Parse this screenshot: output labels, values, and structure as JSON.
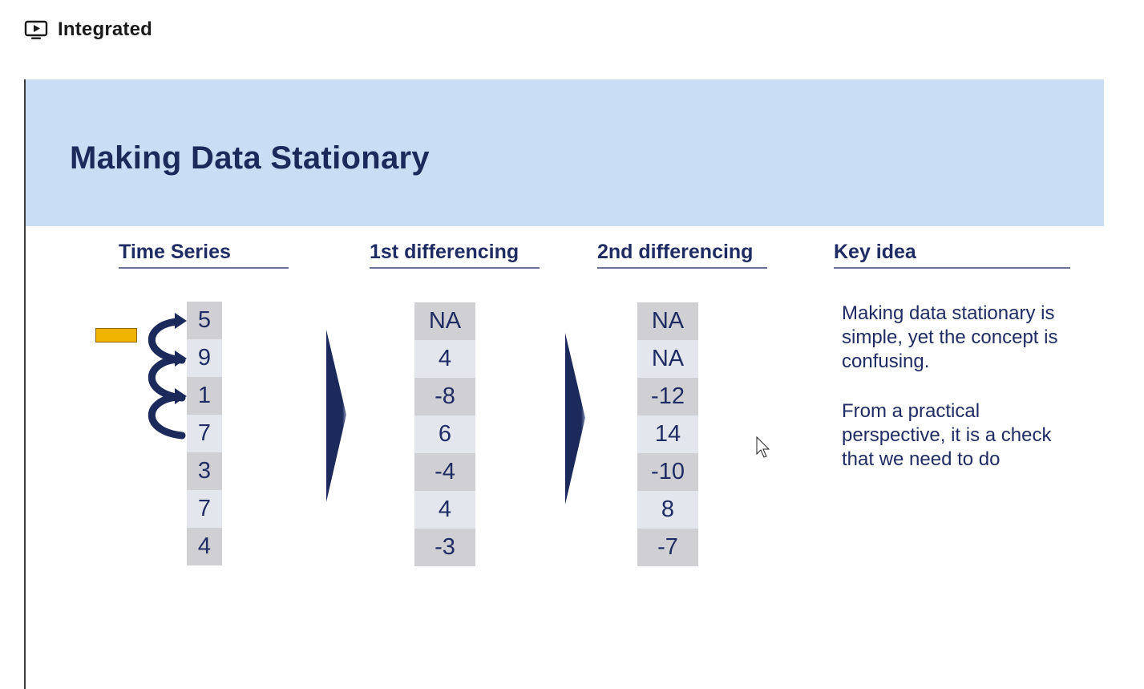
{
  "app": {
    "title": "Integrated",
    "icon": "monitor-play-icon"
  },
  "slide": {
    "title": "Making Data Stationary",
    "columns": {
      "time_series": {
        "header": "Time Series",
        "values": [
          "5",
          "9",
          "1",
          "7",
          "3",
          "7",
          "4"
        ]
      },
      "first_diff": {
        "header": "1st differencing",
        "values": [
          "NA",
          "4",
          "-8",
          "6",
          "-4",
          "4",
          "-3"
        ]
      },
      "second_diff": {
        "header": "2nd differencing",
        "values": [
          "NA",
          "NA",
          "-12",
          "14",
          "-10",
          "8",
          "-7"
        ]
      },
      "key_idea": {
        "header": "Key idea",
        "paragraphs": [
          "Making data stationary is simple, yet the concept is confusing.",
          "From a practical perspective, it is a check that we need to do"
        ]
      }
    }
  },
  "colors": {
    "banner": "#c9ddf5",
    "title_text": "#1b2a5a",
    "body_text": "#1f2c63",
    "cell_dark": "#d0d0d4",
    "cell_light": "#e4e6ee",
    "arrow": "#1b2a5a",
    "marker": "#f0b400"
  }
}
